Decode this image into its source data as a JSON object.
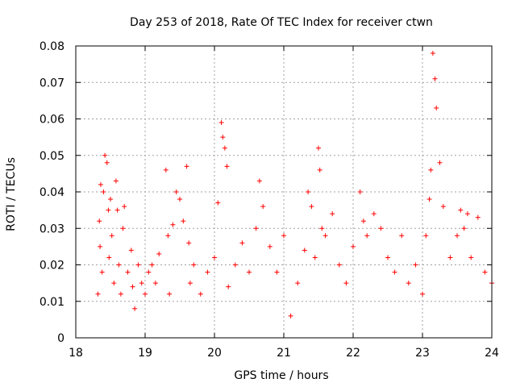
{
  "chart_data": {
    "type": "scatter",
    "title": "Day 253 of 2018, Rate Of TEC Index for receiver ctwn",
    "xlabel": "GPS time / hours",
    "ylabel": "ROTI / TECUs",
    "xlim": [
      18,
      24
    ],
    "ylim": [
      0,
      0.08
    ],
    "xticks": [
      "18",
      "19",
      "20",
      "21",
      "22",
      "23",
      "24"
    ],
    "yticks": [
      "0",
      "0.01",
      "0.02",
      "0.03",
      "0.04",
      "0.05",
      "0.06",
      "0.07",
      "0.08"
    ],
    "grid": true,
    "marker": "+",
    "color": "#ff0000",
    "series": [
      {
        "name": "ROTI",
        "x": [
          18.32,
          18.34,
          18.35,
          18.36,
          18.38,
          18.4,
          18.42,
          18.45,
          18.47,
          18.48,
          18.5,
          18.52,
          18.55,
          18.58,
          18.6,
          18.62,
          18.65,
          18.68,
          18.7,
          18.75,
          18.8,
          18.82,
          18.85,
          18.9,
          18.95,
          19.0,
          19.05,
          19.1,
          19.15,
          19.2,
          19.3,
          19.33,
          19.35,
          19.4,
          19.45,
          19.5,
          19.55,
          19.6,
          19.63,
          19.65,
          19.7,
          19.8,
          19.9,
          20.0,
          20.05,
          20.1,
          20.12,
          20.15,
          20.18,
          20.2,
          20.3,
          20.4,
          20.5,
          20.6,
          20.65,
          20.7,
          20.8,
          20.9,
          21.0,
          21.1,
          21.2,
          21.3,
          21.35,
          21.4,
          21.45,
          21.5,
          21.52,
          21.55,
          21.6,
          21.7,
          21.8,
          21.9,
          22.0,
          22.1,
          22.15,
          22.2,
          22.3,
          22.4,
          22.5,
          22.6,
          22.7,
          22.8,
          22.9,
          23.0,
          23.05,
          23.1,
          23.12,
          23.15,
          23.18,
          23.2,
          23.25,
          23.3,
          23.4,
          23.5,
          23.55,
          23.6,
          23.65,
          23.7,
          23.8,
          23.9,
          24.0
        ],
        "y": [
          0.012,
          0.032,
          0.025,
          0.042,
          0.018,
          0.04,
          0.05,
          0.048,
          0.035,
          0.022,
          0.038,
          0.028,
          0.015,
          0.043,
          0.035,
          0.02,
          0.012,
          0.03,
          0.036,
          0.018,
          0.024,
          0.014,
          0.008,
          0.02,
          0.015,
          0.012,
          0.018,
          0.02,
          0.015,
          0.023,
          0.046,
          0.028,
          0.012,
          0.031,
          0.04,
          0.038,
          0.032,
          0.047,
          0.026,
          0.015,
          0.02,
          0.012,
          0.018,
          0.022,
          0.037,
          0.059,
          0.055,
          0.052,
          0.047,
          0.014,
          0.02,
          0.026,
          0.018,
          0.03,
          0.043,
          0.036,
          0.025,
          0.018,
          0.028,
          0.006,
          0.015,
          0.024,
          0.04,
          0.036,
          0.022,
          0.052,
          0.046,
          0.03,
          0.028,
          0.034,
          0.02,
          0.015,
          0.025,
          0.04,
          0.032,
          0.028,
          0.034,
          0.03,
          0.022,
          0.018,
          0.028,
          0.015,
          0.02,
          0.012,
          0.028,
          0.038,
          0.046,
          0.078,
          0.071,
          0.063,
          0.048,
          0.036,
          0.022,
          0.028,
          0.035,
          0.03,
          0.034,
          0.022,
          0.033,
          0.018,
          0.015
        ]
      }
    ]
  }
}
